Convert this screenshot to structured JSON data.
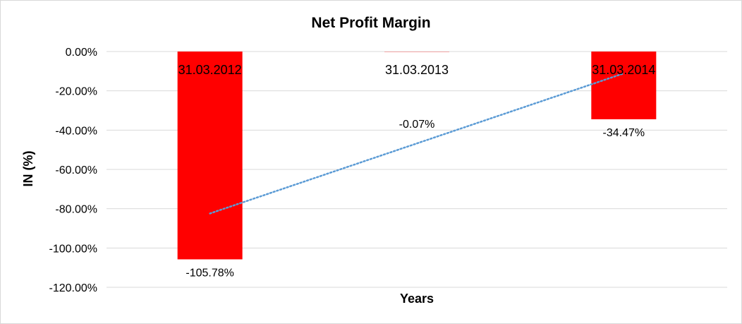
{
  "chart_data": {
    "type": "bar",
    "title": "Net Profit Margin",
    "xlabel": "Years",
    "ylabel": "IN (%)",
    "categories": [
      "31.03.2012",
      "31.03.2013",
      "31.03.2014"
    ],
    "values": [
      -105.78,
      -0.07,
      -34.47
    ],
    "data_labels": [
      "-105.78%",
      "-0.07%",
      "-34.47%"
    ],
    "ylim": [
      -120,
      0
    ],
    "y_ticks": [
      0,
      -20,
      -40,
      -60,
      -80,
      -100,
      -120
    ],
    "y_tick_labels": [
      "0.00%",
      "-20.00%",
      "-40.00%",
      "-60.00%",
      "-80.00%",
      "-100.00%",
      "-120.00%"
    ],
    "grid": true,
    "legend": "none",
    "bar_color": "#ff0000",
    "trendline": {
      "type": "linear",
      "style": "dotted",
      "color": "#5b9bd5"
    }
  }
}
